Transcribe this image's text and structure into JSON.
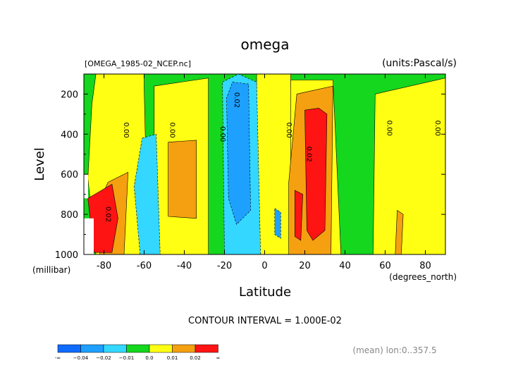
{
  "chart_data": {
    "type": "heatmap",
    "title": "omega",
    "file_label": "[OMEGA_1985-02_NCEP.nc]",
    "units_label": "(units:Pascal/s)",
    "xlabel": "Latitude",
    "x_units": "(degrees_north)",
    "ylabel": "Level",
    "y_units": "(millibar)",
    "xlim": [
      -90,
      90
    ],
    "ylim": [
      1000,
      100
    ],
    "x_ticks": [
      -80,
      -60,
      -40,
      -20,
      0,
      20,
      40,
      60,
      80
    ],
    "x_tick_labels": [
      "-80",
      "-60",
      "-40",
      "-20",
      "0",
      "20",
      "40",
      "60",
      "80"
    ],
    "y_ticks": [
      200,
      400,
      600,
      800,
      1000
    ],
    "y_tick_labels": [
      "200",
      "400",
      "600",
      "800",
      "1000"
    ],
    "contour_interval": "CONTOUR INTERVAL = 1.000E-02",
    "footer_note": "(mean) lon:0..357.5",
    "legend": {
      "colors": [
        "#0f6bff",
        "#1ea0ff",
        "#33d7ff",
        "#14d71e",
        "#ffff14",
        "#f5a010",
        "#ff1414"
      ],
      "tick_labels": [
        "-∞",
        "−0.04",
        "−0.02",
        "−0.01",
        "0.0",
        "0.01",
        "0.02",
        "∞"
      ]
    },
    "contour_labels": [
      {
        "text": "0.00",
        "lat": -70,
        "lev": 380
      },
      {
        "text": "0.00",
        "lat": -47,
        "lev": 380
      },
      {
        "text": "0.00",
        "lat": -22,
        "lev": 400
      },
      {
        "text": "0.02",
        "lat": -15,
        "lev": 230
      },
      {
        "text": "0.00",
        "lat": 11,
        "lev": 380
      },
      {
        "text": "0.02",
        "lat": 21,
        "lev": 500
      },
      {
        "text": "0.00",
        "lat": 61,
        "lev": 370
      },
      {
        "text": "0.00",
        "lat": 85,
        "lev": 370
      },
      {
        "text": "0.02",
        "lat": -79,
        "lev": 800
      }
    ],
    "regions": [
      {
        "class": 3,
        "points": [
          [
            -90,
            100
          ],
          [
            90,
            100
          ],
          [
            90,
            1000
          ],
          [
            -90,
            1000
          ]
        ]
      },
      {
        "class": 4,
        "points": [
          [
            -84,
            100
          ],
          [
            -60,
            100
          ],
          [
            -60,
            170
          ],
          [
            -58,
            1000
          ],
          [
            -84,
            1000
          ],
          [
            -88,
            620
          ],
          [
            -86,
            250
          ]
        ]
      },
      {
        "class": 4,
        "points": [
          [
            -55,
            160
          ],
          [
            -28,
            120
          ],
          [
            -28,
            1000
          ],
          [
            -55,
            1000
          ]
        ]
      },
      {
        "class": 4,
        "points": [
          [
            -4,
            100
          ],
          [
            13,
            100
          ],
          [
            14,
            1000
          ],
          [
            -4,
            1000
          ]
        ]
      },
      {
        "class": 4,
        "points": [
          [
            13,
            130
          ],
          [
            34,
            130
          ],
          [
            38,
            1000
          ],
          [
            13,
            1000
          ]
        ]
      },
      {
        "class": 4,
        "points": [
          [
            55,
            200
          ],
          [
            90,
            120
          ],
          [
            90,
            1000
          ],
          [
            54,
            1000
          ]
        ]
      },
      {
        "class": 2,
        "points": [
          [
            -21,
            140
          ],
          [
            -13,
            100
          ],
          [
            -4,
            140
          ],
          [
            -2,
            1000
          ],
          [
            -20,
            1000
          ]
        ]
      },
      {
        "class": 2,
        "points": [
          [
            -61,
            420
          ],
          [
            -54,
            400
          ],
          [
            -52,
            1000
          ],
          [
            -62,
            1000
          ],
          [
            -65,
            660
          ]
        ]
      },
      {
        "class": 1,
        "points": [
          [
            -16,
            140
          ],
          [
            -8,
            150
          ],
          [
            -7,
            780
          ],
          [
            -14,
            850
          ],
          [
            -18,
            720
          ],
          [
            -19,
            220
          ]
        ]
      },
      {
        "class": 1,
        "points": [
          [
            5,
            770
          ],
          [
            8,
            790
          ],
          [
            8,
            920
          ],
          [
            5,
            900
          ]
        ]
      },
      {
        "class": 5,
        "points": [
          [
            -78,
            640
          ],
          [
            -68,
            590
          ],
          [
            -70,
            1000
          ],
          [
            -82,
            1000
          ],
          [
            -84,
            780
          ]
        ]
      },
      {
        "class": 5,
        "points": [
          [
            -48,
            440
          ],
          [
            -34,
            430
          ],
          [
            -34,
            820
          ],
          [
            -48,
            810
          ]
        ]
      },
      {
        "class": 5,
        "points": [
          [
            12,
            640
          ],
          [
            16,
            200
          ],
          [
            34,
            160
          ],
          [
            33,
            1000
          ],
          [
            12,
            1000
          ]
        ]
      },
      {
        "class": 5,
        "points": [
          [
            66,
            780
          ],
          [
            69,
            800
          ],
          [
            68,
            1000
          ],
          [
            65,
            1000
          ]
        ]
      },
      {
        "class": 6,
        "points": [
          [
            -88,
            720
          ],
          [
            -76,
            650
          ],
          [
            -73,
            820
          ],
          [
            -76,
            990
          ],
          [
            -85,
            990
          ]
        ]
      },
      {
        "class": 6,
        "points": [
          [
            20,
            280
          ],
          [
            27,
            270
          ],
          [
            31,
            300
          ],
          [
            30,
            880
          ],
          [
            24,
            930
          ],
          [
            21,
            880
          ]
        ]
      },
      {
        "class": 6,
        "points": [
          [
            15,
            680
          ],
          [
            19,
            700
          ],
          [
            18,
            930
          ],
          [
            15,
            910
          ]
        ]
      }
    ]
  }
}
